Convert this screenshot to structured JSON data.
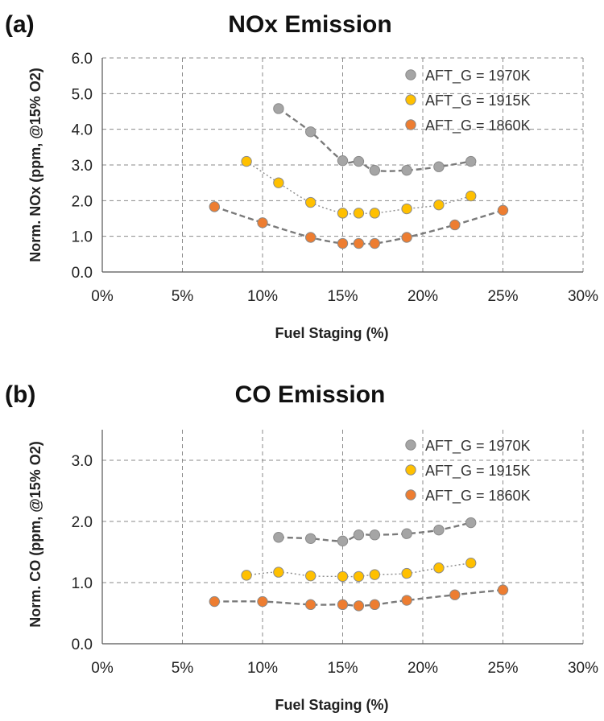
{
  "chart_data": [
    {
      "panel": "(a)",
      "type": "scatter",
      "title": "NOx Emission",
      "xlabel": "Fuel Staging (%)",
      "ylabel": "Norm. NOx (ppm, @15% O2)",
      "xlim": [
        0,
        30
      ],
      "ylim": [
        0,
        6
      ],
      "xticks": [
        0,
        5,
        10,
        15,
        20,
        25,
        30
      ],
      "xtick_labels": [
        "0%",
        "5%",
        "10%",
        "15%",
        "20%",
        "25%",
        "30%"
      ],
      "yticks": [
        0,
        1,
        2,
        3,
        4,
        5,
        6
      ],
      "ytick_labels": [
        "0.0",
        "1.0",
        "2.0",
        "3.0",
        "4.0",
        "5.0",
        "6.0"
      ],
      "grid": true,
      "legend_position": "top-right",
      "series": [
        {
          "name": "AFT_G = 1970K",
          "color": "#a5a5a5",
          "trend": "dashed",
          "x": [
            11,
            13,
            15,
            16,
            17,
            19,
            21,
            23
          ],
          "y": [
            4.58,
            3.93,
            3.12,
            3.1,
            2.85,
            2.85,
            2.95,
            3.1
          ]
        },
        {
          "name": "AFT_G = 1915K",
          "color": "#ffc000",
          "trend": "dotted",
          "x": [
            9,
            11,
            13,
            15,
            16,
            17,
            19,
            21,
            23
          ],
          "y": [
            3.1,
            2.5,
            1.95,
            1.65,
            1.65,
            1.65,
            1.77,
            1.88,
            2.13
          ]
        },
        {
          "name": "AFT_G = 1860K",
          "color": "#ed7d31",
          "trend": "dashed",
          "x": [
            7,
            10,
            13,
            15,
            16,
            17,
            19,
            22,
            25
          ],
          "y": [
            1.83,
            1.38,
            0.97,
            0.8,
            0.8,
            0.8,
            0.97,
            1.32,
            1.73
          ]
        }
      ]
    },
    {
      "panel": "(b)",
      "type": "scatter",
      "title": "CO Emission",
      "xlabel": "Fuel Staging (%)",
      "ylabel": "Norm. CO (ppm, @15% O2)",
      "xlim": [
        0,
        30
      ],
      "ylim": [
        0,
        3.5
      ],
      "xticks": [
        0,
        5,
        10,
        15,
        20,
        25,
        30
      ],
      "xtick_labels": [
        "0%",
        "5%",
        "10%",
        "15%",
        "20%",
        "25%",
        "30%"
      ],
      "yticks": [
        0,
        1,
        2,
        3
      ],
      "ytick_labels": [
        "0.0",
        "1.0",
        "2.0",
        "3.0"
      ],
      "grid": true,
      "legend_position": "top-right",
      "series": [
        {
          "name": "AFT_G = 1970K",
          "color": "#a5a5a5",
          "trend": "dashed",
          "x": [
            11,
            13,
            15,
            16,
            17,
            19,
            21,
            23
          ],
          "y": [
            1.74,
            1.72,
            1.68,
            1.78,
            1.78,
            1.8,
            1.86,
            1.98
          ]
        },
        {
          "name": "AFT_G = 1915K",
          "color": "#ffc000",
          "trend": "dotted",
          "x": [
            9,
            11,
            13,
            15,
            16,
            17,
            19,
            21,
            23
          ],
          "y": [
            1.12,
            1.17,
            1.11,
            1.1,
            1.1,
            1.13,
            1.15,
            1.24,
            1.32
          ]
        },
        {
          "name": "AFT_G = 1860K",
          "color": "#ed7d31",
          "trend": "dashed",
          "x": [
            7,
            10,
            13,
            15,
            16,
            17,
            19,
            22,
            25
          ],
          "y": [
            0.69,
            0.69,
            0.64,
            0.64,
            0.62,
            0.64,
            0.71,
            0.8,
            0.88
          ]
        }
      ]
    }
  ]
}
